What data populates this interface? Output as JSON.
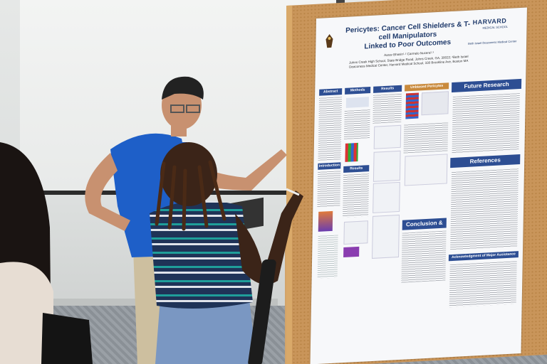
{
  "poster": {
    "title_line1": "Pericytes: Cancer Cell Shielders & T-cell Manipulators",
    "title_line2": "Linked to Poor Outcomes",
    "authors": "Aarav Bhasin¹·² Carmelo Nucera²·³",
    "affiliations": "Johns Creek High School, State Bridge Road, Johns Creek, GA, 30022; ²Beth Israel Deaconess Medical Center, Harvard Medical School, 330 Brookline Ave, Boston MA",
    "logo_text": "HARVARD",
    "logo_sub": "MEDICAL SCHOOL",
    "partner": "Beth Israel Deaconess Medical Center",
    "sections": {
      "abstract": "Abstract",
      "methods": "Methods",
      "results": "Results",
      "introduction": "Introduction",
      "results2": "Results",
      "signature": "Unbiased Pericytes Signature",
      "future": "Future Research",
      "references": "References",
      "conclusion": "Conclusion & Discussion",
      "acknowledgement": "Acknowledgment of Major Assistance"
    }
  },
  "colors": {
    "poster_header": "#2d4e93",
    "corkboard": "#c9955a",
    "easel_wood": "#d2a46a",
    "shirt_blue": "#1e5fc8",
    "sweater_navy": "#1f3357",
    "sweater_teal": "#1f9e9a"
  }
}
